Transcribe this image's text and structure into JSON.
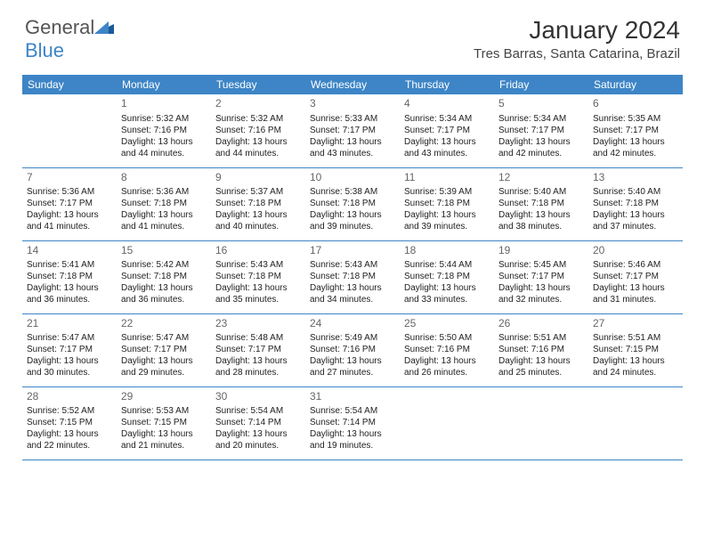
{
  "logo": {
    "text1": "General",
    "text2": "Blue"
  },
  "title": "January 2024",
  "location": "Tres Barras, Santa Catarina, Brazil",
  "weekdays": [
    "Sunday",
    "Monday",
    "Tuesday",
    "Wednesday",
    "Thursday",
    "Friday",
    "Saturday"
  ],
  "colors": {
    "accent": "#3d85c6",
    "text": "#222",
    "bg": "#ffffff"
  },
  "weeks": [
    [
      null,
      {
        "n": "1",
        "sr": "5:32 AM",
        "ss": "7:16 PM",
        "dl": "13 hours and 44 minutes."
      },
      {
        "n": "2",
        "sr": "5:32 AM",
        "ss": "7:16 PM",
        "dl": "13 hours and 44 minutes."
      },
      {
        "n": "3",
        "sr": "5:33 AM",
        "ss": "7:17 PM",
        "dl": "13 hours and 43 minutes."
      },
      {
        "n": "4",
        "sr": "5:34 AM",
        "ss": "7:17 PM",
        "dl": "13 hours and 43 minutes."
      },
      {
        "n": "5",
        "sr": "5:34 AM",
        "ss": "7:17 PM",
        "dl": "13 hours and 42 minutes."
      },
      {
        "n": "6",
        "sr": "5:35 AM",
        "ss": "7:17 PM",
        "dl": "13 hours and 42 minutes."
      }
    ],
    [
      {
        "n": "7",
        "sr": "5:36 AM",
        "ss": "7:17 PM",
        "dl": "13 hours and 41 minutes."
      },
      {
        "n": "8",
        "sr": "5:36 AM",
        "ss": "7:18 PM",
        "dl": "13 hours and 41 minutes."
      },
      {
        "n": "9",
        "sr": "5:37 AM",
        "ss": "7:18 PM",
        "dl": "13 hours and 40 minutes."
      },
      {
        "n": "10",
        "sr": "5:38 AM",
        "ss": "7:18 PM",
        "dl": "13 hours and 39 minutes."
      },
      {
        "n": "11",
        "sr": "5:39 AM",
        "ss": "7:18 PM",
        "dl": "13 hours and 39 minutes."
      },
      {
        "n": "12",
        "sr": "5:40 AM",
        "ss": "7:18 PM",
        "dl": "13 hours and 38 minutes."
      },
      {
        "n": "13",
        "sr": "5:40 AM",
        "ss": "7:18 PM",
        "dl": "13 hours and 37 minutes."
      }
    ],
    [
      {
        "n": "14",
        "sr": "5:41 AM",
        "ss": "7:18 PM",
        "dl": "13 hours and 36 minutes."
      },
      {
        "n": "15",
        "sr": "5:42 AM",
        "ss": "7:18 PM",
        "dl": "13 hours and 36 minutes."
      },
      {
        "n": "16",
        "sr": "5:43 AM",
        "ss": "7:18 PM",
        "dl": "13 hours and 35 minutes."
      },
      {
        "n": "17",
        "sr": "5:43 AM",
        "ss": "7:18 PM",
        "dl": "13 hours and 34 minutes."
      },
      {
        "n": "18",
        "sr": "5:44 AM",
        "ss": "7:18 PM",
        "dl": "13 hours and 33 minutes."
      },
      {
        "n": "19",
        "sr": "5:45 AM",
        "ss": "7:17 PM",
        "dl": "13 hours and 32 minutes."
      },
      {
        "n": "20",
        "sr": "5:46 AM",
        "ss": "7:17 PM",
        "dl": "13 hours and 31 minutes."
      }
    ],
    [
      {
        "n": "21",
        "sr": "5:47 AM",
        "ss": "7:17 PM",
        "dl": "13 hours and 30 minutes."
      },
      {
        "n": "22",
        "sr": "5:47 AM",
        "ss": "7:17 PM",
        "dl": "13 hours and 29 minutes."
      },
      {
        "n": "23",
        "sr": "5:48 AM",
        "ss": "7:17 PM",
        "dl": "13 hours and 28 minutes."
      },
      {
        "n": "24",
        "sr": "5:49 AM",
        "ss": "7:16 PM",
        "dl": "13 hours and 27 minutes."
      },
      {
        "n": "25",
        "sr": "5:50 AM",
        "ss": "7:16 PM",
        "dl": "13 hours and 26 minutes."
      },
      {
        "n": "26",
        "sr": "5:51 AM",
        "ss": "7:16 PM",
        "dl": "13 hours and 25 minutes."
      },
      {
        "n": "27",
        "sr": "5:51 AM",
        "ss": "7:15 PM",
        "dl": "13 hours and 24 minutes."
      }
    ],
    [
      {
        "n": "28",
        "sr": "5:52 AM",
        "ss": "7:15 PM",
        "dl": "13 hours and 22 minutes."
      },
      {
        "n": "29",
        "sr": "5:53 AM",
        "ss": "7:15 PM",
        "dl": "13 hours and 21 minutes."
      },
      {
        "n": "30",
        "sr": "5:54 AM",
        "ss": "7:14 PM",
        "dl": "13 hours and 20 minutes."
      },
      {
        "n": "31",
        "sr": "5:54 AM",
        "ss": "7:14 PM",
        "dl": "13 hours and 19 minutes."
      },
      null,
      null,
      null
    ]
  ],
  "labels": {
    "sunrise": "Sunrise:",
    "sunset": "Sunset:",
    "daylight": "Daylight:"
  }
}
